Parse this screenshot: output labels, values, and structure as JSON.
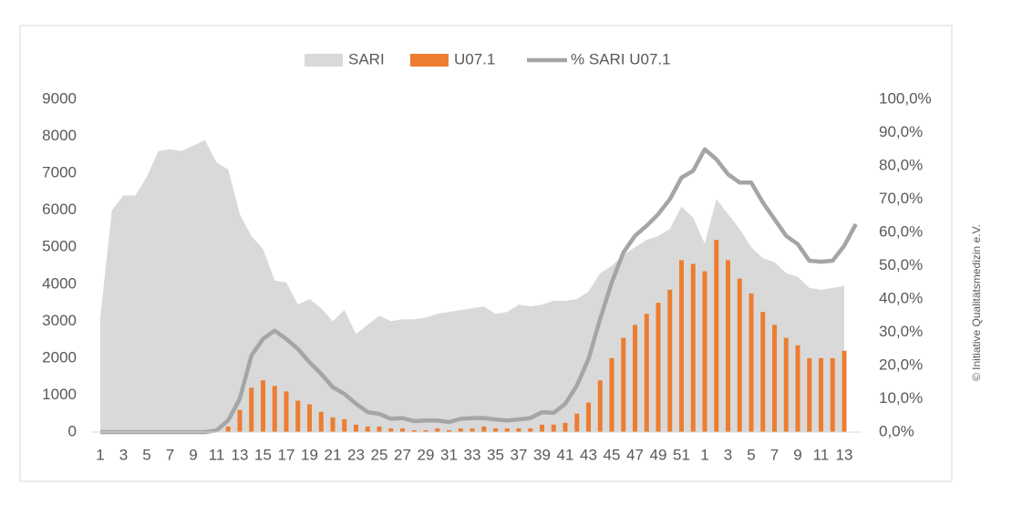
{
  "chart_data": {
    "type": "combo",
    "categories": [
      "1",
      null,
      "3",
      null,
      "5",
      null,
      "7",
      null,
      "9",
      null,
      "11",
      null,
      "13",
      null,
      "15",
      null,
      "17",
      null,
      "19",
      null,
      "21",
      null,
      "23",
      null,
      "25",
      null,
      "27",
      null,
      "29",
      null,
      "31",
      null,
      "33",
      null,
      "35",
      null,
      "37",
      null,
      "39",
      null,
      "41",
      null,
      "43",
      null,
      "45",
      null,
      "47",
      null,
      "49",
      null,
      "51",
      null,
      "1",
      null,
      "3",
      null,
      "5",
      null,
      "7",
      null,
      "9",
      null,
      "11",
      null,
      "13",
      null
    ],
    "series": [
      {
        "name": "SARI",
        "kind": "area",
        "color": "#d9d9d9",
        "axis": "y",
        "values": [
          3100,
          6000,
          6400,
          6400,
          6900,
          7600,
          7650,
          7600,
          7750,
          7900,
          7300,
          7100,
          5900,
          5300,
          4950,
          4100,
          4050,
          3450,
          3600,
          3350,
          3000,
          3300,
          2650,
          2900,
          3150,
          3000,
          3050,
          3050,
          3100,
          3200,
          3250,
          3300,
          3350,
          3400,
          3200,
          3250,
          3450,
          3400,
          3450,
          3550,
          3550,
          3600,
          3800,
          4300,
          4500,
          4800,
          5000,
          5200,
          5300,
          5500,
          6100,
          5800,
          5100,
          6300,
          5900,
          5500,
          5000,
          4700,
          4600,
          4300,
          4200,
          3900,
          3850,
          3900,
          3950,
          null
        ]
      },
      {
        "name": "U07.1",
        "kind": "bar",
        "color": "#ed7d31",
        "axis": "y",
        "values": [
          0,
          0,
          0,
          0,
          0,
          0,
          0,
          0,
          0,
          0,
          0,
          150,
          600,
          1200,
          1400,
          1250,
          1100,
          850,
          750,
          550,
          400,
          350,
          200,
          150,
          150,
          100,
          100,
          50,
          50,
          100,
          50,
          100,
          100,
          150,
          100,
          100,
          100,
          100,
          200,
          200,
          250,
          500,
          800,
          1400,
          2000,
          2550,
          2900,
          3200,
          3500,
          3850,
          4650,
          4550,
          4350,
          5200,
          4650,
          4150,
          3750,
          3250,
          2900,
          2550,
          2350,
          2000,
          2000,
          2000,
          2200,
          null
        ]
      },
      {
        "name": "% SARI U07.1",
        "kind": "line",
        "color": "#a5a5a5",
        "axis": "y2",
        "values": [
          0,
          0,
          0,
          0,
          0,
          0,
          0,
          0,
          0,
          0,
          0.5,
          3.5,
          10,
          23,
          28,
          30.5,
          28,
          25,
          21,
          17.5,
          13.5,
          11.5,
          8.5,
          6,
          5.5,
          4,
          4.2,
          3.3,
          3.5,
          3.5,
          3,
          4,
          4.2,
          4.2,
          3.8,
          3.5,
          3.8,
          4.2,
          6,
          5.8,
          8.5,
          14,
          22,
          34,
          45,
          54,
          59,
          62,
          65.5,
          70,
          76.5,
          78.5,
          85,
          82,
          77.5,
          75,
          75,
          69,
          64,
          59,
          56.5,
          51.5,
          51.2,
          51.5,
          56,
          62.5
        ]
      }
    ],
    "ylim": [
      0,
      9000
    ],
    "yticks": [
      0,
      1000,
      2000,
      3000,
      4000,
      5000,
      6000,
      7000,
      8000,
      9000
    ],
    "y2lim": [
      0,
      100
    ],
    "y2ticks": [
      {
        "value": 0,
        "label": "0,0%"
      },
      {
        "value": 10,
        "label": "10,0%"
      },
      {
        "value": 20,
        "label": "20,0%"
      },
      {
        "value": 30,
        "label": "30,0%"
      },
      {
        "value": 40,
        "label": "40,0%"
      },
      {
        "value": 50,
        "label": "50,0%"
      },
      {
        "value": 60,
        "label": "60,0%"
      },
      {
        "value": 70,
        "label": "70,0%"
      },
      {
        "value": 80,
        "label": "80,0%"
      },
      {
        "value": 90,
        "label": "90,0%"
      },
      {
        "value": 100,
        "label": "100,0%"
      }
    ],
    "legend": "top",
    "credit": "© Initiative Qualitätsmedizin e.V."
  }
}
